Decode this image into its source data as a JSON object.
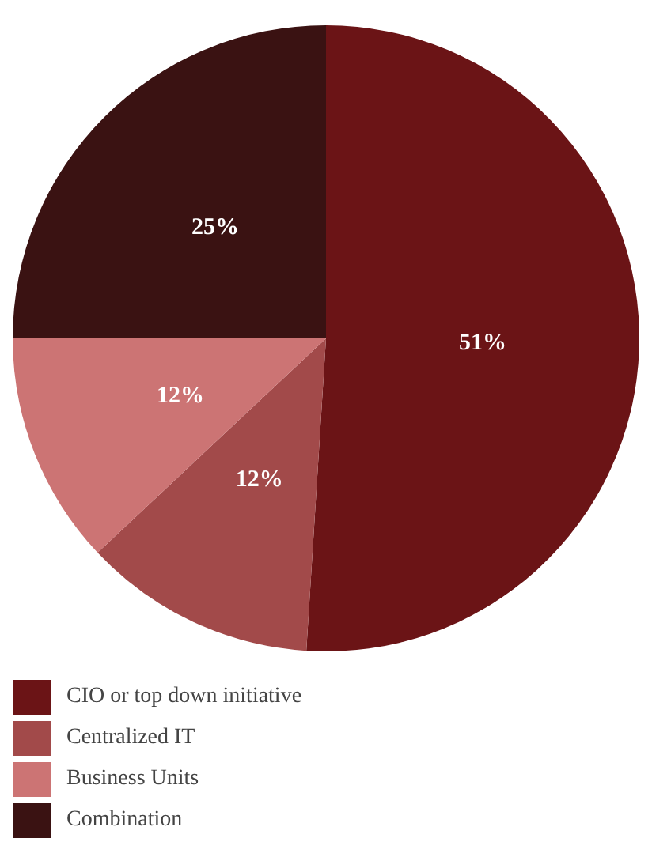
{
  "chart_data": {
    "type": "pie",
    "categories": [
      "CIO or top down initiative",
      "Centralized IT",
      "Business Units",
      "Combination"
    ],
    "values": [
      51,
      12,
      12,
      25
    ],
    "colors": [
      "#6b1416",
      "#a24a4a",
      "#cc7474",
      "#3a1212"
    ],
    "value_labels": [
      "51%",
      "12%",
      "12%",
      "25%"
    ],
    "legend": "bottom left"
  }
}
